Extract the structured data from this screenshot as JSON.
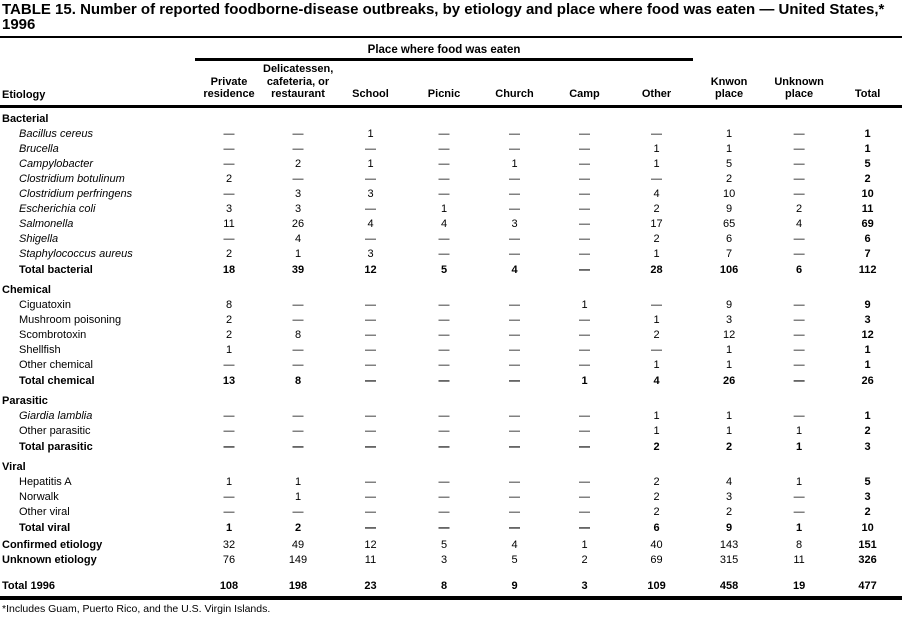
{
  "title": "TABLE 15. Number of reported foodborne-disease outbreaks, by etiology and place where food was eaten — United States,* 1996",
  "table": {
    "spanner": "Place where food was eaten",
    "row_header": "Etiology",
    "dash": "—",
    "columns": [
      {
        "id": "private-residence",
        "label": "Private\nresidence"
      },
      {
        "id": "delicatessen-cafeteria-or-restaurant",
        "label": "Delicatessen,\ncafeteria, or\nrestaurant"
      },
      {
        "id": "school",
        "label": "School"
      },
      {
        "id": "picnic",
        "label": "Picnic"
      },
      {
        "id": "church",
        "label": "Church"
      },
      {
        "id": "camp",
        "label": "Camp"
      },
      {
        "id": "other",
        "label": "Other"
      },
      {
        "id": "known-place",
        "label": "Knwon\nplace"
      },
      {
        "id": "unknown-place",
        "label": "Unknown\nplace"
      },
      {
        "id": "total",
        "label": "Total"
      }
    ],
    "sections": [
      {
        "header": "Bacterial",
        "rows": [
          {
            "label": "Bacillus cereus",
            "italic": true,
            "values": [
              "—",
              "—",
              "1",
              "—",
              "—",
              "—",
              "—",
              "1",
              "—",
              "1"
            ]
          },
          {
            "label": "Brucella",
            "italic": true,
            "values": [
              "—",
              "—",
              "—",
              "—",
              "—",
              "—",
              "1",
              "1",
              "—",
              "1"
            ]
          },
          {
            "label": "Campylobacter",
            "italic": true,
            "values": [
              "—",
              "2",
              "1",
              "—",
              "1",
              "—",
              "1",
              "5",
              "—",
              "5"
            ]
          },
          {
            "label": "Clostridium botulinum",
            "italic": true,
            "values": [
              "2",
              "—",
              "—",
              "—",
              "—",
              "—",
              "—",
              "2",
              "—",
              "2"
            ]
          },
          {
            "label": "Clostridium perfringens",
            "italic": true,
            "values": [
              "—",
              "3",
              "3",
              "—",
              "—",
              "—",
              "4",
              "10",
              "—",
              "10"
            ]
          },
          {
            "label": "Escherichia coli",
            "italic": true,
            "values": [
              "3",
              "3",
              "—",
              "1",
              "—",
              "—",
              "2",
              "9",
              "2",
              "11"
            ]
          },
          {
            "label": "Salmonella",
            "italic": true,
            "values": [
              "11",
              "26",
              "4",
              "4",
              "3",
              "—",
              "17",
              "65",
              "4",
              "69"
            ]
          },
          {
            "label": "Shigella",
            "italic": true,
            "values": [
              "—",
              "4",
              "—",
              "—",
              "—",
              "—",
              "2",
              "6",
              "—",
              "6"
            ]
          },
          {
            "label": "Staphylococcus aureus",
            "italic": true,
            "values": [
              "2",
              "1",
              "3",
              "—",
              "—",
              "—",
              "1",
              "7",
              "—",
              "7"
            ]
          }
        ],
        "total": {
          "label": "Total bacterial",
          "values": [
            "18",
            "39",
            "12",
            "5",
            "4",
            "—",
            "28",
            "106",
            "6",
            "112"
          ]
        }
      },
      {
        "header": "Chemical",
        "rows": [
          {
            "label": "Ciguatoxin",
            "italic": false,
            "values": [
              "8",
              "—",
              "—",
              "—",
              "—",
              "1",
              "—",
              "9",
              "—",
              "9"
            ]
          },
          {
            "label": "Mushroom poisoning",
            "italic": false,
            "values": [
              "2",
              "—",
              "—",
              "—",
              "—",
              "—",
              "1",
              "3",
              "—",
              "3"
            ]
          },
          {
            "label": "Scombrotoxin",
            "italic": false,
            "values": [
              "2",
              "8",
              "—",
              "—",
              "—",
              "—",
              "2",
              "12",
              "—",
              "12"
            ]
          },
          {
            "label": "Shellfish",
            "italic": false,
            "values": [
              "1",
              "—",
              "—",
              "—",
              "—",
              "—",
              "—",
              "1",
              "—",
              "1"
            ]
          },
          {
            "label": "Other chemical",
            "italic": false,
            "values": [
              "—",
              "—",
              "—",
              "—",
              "—",
              "—",
              "1",
              "1",
              "—",
              "1"
            ]
          }
        ],
        "total": {
          "label": "Total chemical",
          "values": [
            "13",
            "8",
            "—",
            "—",
            "—",
            "1",
            "4",
            "26",
            "—",
            "26"
          ]
        }
      },
      {
        "header": "Parasitic",
        "rows": [
          {
            "label": "Giardia lamblia",
            "italic": true,
            "values": [
              "—",
              "—",
              "—",
              "—",
              "—",
              "—",
              "1",
              "1",
              "—",
              "1"
            ]
          },
          {
            "label": "Other parasitic",
            "italic": false,
            "values": [
              "—",
              "—",
              "—",
              "—",
              "—",
              "—",
              "1",
              "1",
              "1",
              "2"
            ]
          }
        ],
        "total": {
          "label": "Total parasitic",
          "values": [
            "—",
            "—",
            "—",
            "—",
            "—",
            "—",
            "2",
            "2",
            "1",
            "3"
          ]
        }
      },
      {
        "header": "Viral",
        "rows": [
          {
            "label": "Hepatitis A",
            "italic": false,
            "values": [
              "1",
              "1",
              "—",
              "—",
              "—",
              "—",
              "2",
              "4",
              "1",
              "5"
            ]
          },
          {
            "label": "Norwalk",
            "italic": false,
            "values": [
              "—",
              "1",
              "—",
              "—",
              "—",
              "—",
              "2",
              "3",
              "—",
              "3"
            ]
          },
          {
            "label": "Other viral",
            "italic": false,
            "values": [
              "—",
              "—",
              "—",
              "—",
              "—",
              "—",
              "2",
              "2",
              "—",
              "2"
            ]
          }
        ],
        "total": {
          "label": "Total viral",
          "values": [
            "1",
            "2",
            "—",
            "—",
            "—",
            "—",
            "6",
            "9",
            "1",
            "10"
          ]
        }
      }
    ],
    "summary_rows": [
      {
        "label": "Confirmed etiology",
        "values": [
          "32",
          "49",
          "12",
          "5",
          "4",
          "1",
          "40",
          "143",
          "8",
          "151"
        ]
      },
      {
        "label": "Unknown etiology",
        "values": [
          "76",
          "149",
          "11",
          "3",
          "5",
          "2",
          "69",
          "315",
          "11",
          "326"
        ]
      }
    ],
    "grand_total": {
      "label": "Total 1996",
      "values": [
        "108",
        "198",
        "23",
        "8",
        "9",
        "3",
        "109",
        "458",
        "19",
        "477"
      ]
    }
  },
  "footnote": "*Includes Guam, Puerto Rico, and the U.S. Virgin Islands."
}
